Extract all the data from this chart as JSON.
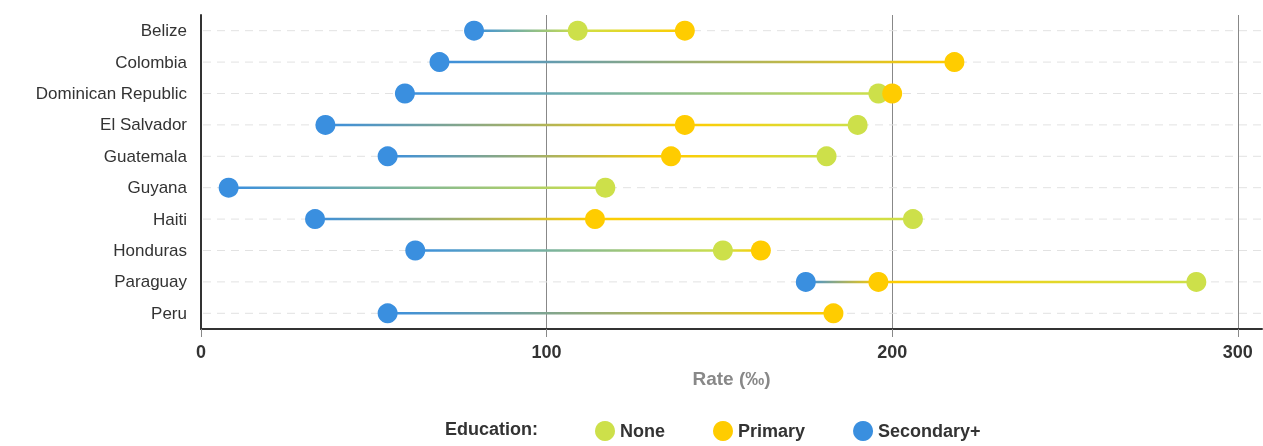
{
  "chart_data": {
    "type": "scatter",
    "orientation": "horizontal",
    "xlabel": "Rate (‰)",
    "legend_title": "Education:",
    "legend": "bottom",
    "grid": true,
    "marker": "circle",
    "line_style": "solid",
    "categories": [
      "Belize",
      "Colombia",
      "Dominican Republic",
      "El Salvador",
      "Guatemala",
      "Guyana",
      "Haiti",
      "Honduras",
      "Paraguay",
      "Peru"
    ],
    "xlim": [
      0,
      307
    ],
    "xticks": [
      0,
      100,
      200,
      300
    ],
    "series": [
      {
        "name": "None",
        "color": "#cde04a",
        "values": [
          109,
          null,
          196,
          190,
          181,
          117,
          206,
          151,
          288,
          null
        ]
      },
      {
        "name": "Primary",
        "color": "#ffcc00",
        "values": [
          140,
          218,
          200,
          140,
          136,
          null,
          114,
          162,
          196,
          183
        ]
      },
      {
        "name": "Secondary+",
        "color": "#3a8fdf",
        "values": [
          79,
          69,
          59,
          36,
          54,
          8,
          33,
          62,
          175,
          54
        ]
      }
    ]
  }
}
